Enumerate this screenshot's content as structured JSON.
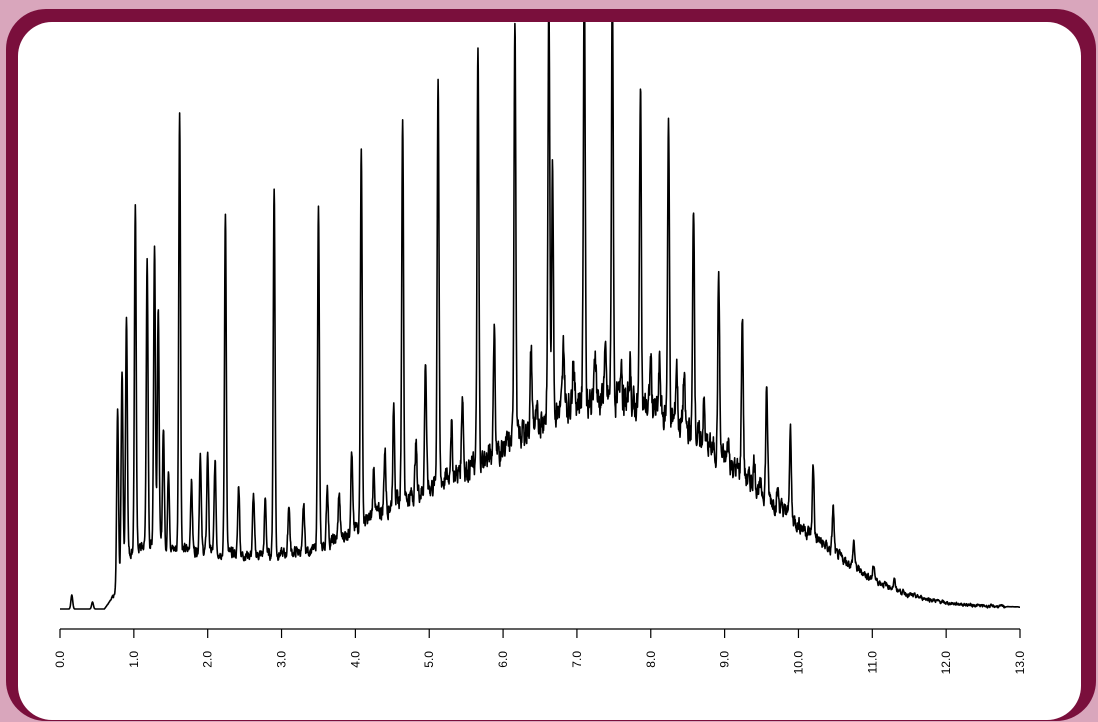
{
  "chart_data": {
    "type": "line",
    "title": "",
    "xlabel": "",
    "ylabel": "",
    "xlim": [
      0.0,
      13.0
    ],
    "x_tick_labels": [
      "0.0",
      "1.0",
      "2.0",
      "3.0",
      "4.0",
      "5.0",
      "6.0",
      "7.0",
      "8.0",
      "9.0",
      "10.0",
      "11.0",
      "12.0",
      "13.0"
    ],
    "x_ticks": [
      0,
      1,
      2,
      3,
      4,
      5,
      6,
      7,
      8,
      9,
      10,
      11,
      12,
      13
    ],
    "baseline": {
      "x": [
        0.0,
        0.6,
        0.75,
        0.9,
        1.2,
        1.5,
        2.0,
        2.5,
        3.0,
        3.5,
        4.0,
        4.5,
        5.0,
        5.5,
        6.0,
        6.5,
        7.0,
        7.5,
        8.0,
        8.5,
        9.0,
        9.5,
        10.0,
        10.5,
        11.0,
        11.5,
        12.0,
        12.5,
        13.0
      ],
      "y": [
        0,
        0,
        15,
        55,
        65,
        60,
        58,
        54,
        55,
        60,
        80,
        105,
        122,
        140,
        160,
        190,
        210,
        210,
        200,
        180,
        150,
        118,
        85,
        55,
        30,
        14,
        6,
        3,
        2
      ]
    },
    "peaks": [
      {
        "x": 0.16,
        "h": 14
      },
      {
        "x": 0.44,
        "h": 7
      },
      {
        "x": 0.78,
        "h": 175
      },
      {
        "x": 0.84,
        "h": 200
      },
      {
        "x": 0.9,
        "h": 240
      },
      {
        "x": 1.02,
        "h": 340
      },
      {
        "x": 1.18,
        "h": 280
      },
      {
        "x": 1.28,
        "h": 300
      },
      {
        "x": 1.33,
        "h": 240
      },
      {
        "x": 1.4,
        "h": 120
      },
      {
        "x": 1.47,
        "h": 80
      },
      {
        "x": 1.62,
        "h": 440
      },
      {
        "x": 1.78,
        "h": 70
      },
      {
        "x": 1.9,
        "h": 100
      },
      {
        "x": 2.0,
        "h": 100
      },
      {
        "x": 2.1,
        "h": 90
      },
      {
        "x": 2.24,
        "h": 340
      },
      {
        "x": 2.42,
        "h": 70
      },
      {
        "x": 2.62,
        "h": 60
      },
      {
        "x": 2.78,
        "h": 55
      },
      {
        "x": 2.9,
        "h": 370
      },
      {
        "x": 3.1,
        "h": 50
      },
      {
        "x": 3.3,
        "h": 45
      },
      {
        "x": 3.5,
        "h": 340
      },
      {
        "x": 3.62,
        "h": 60
      },
      {
        "x": 3.78,
        "h": 45
      },
      {
        "x": 3.95,
        "h": 80
      },
      {
        "x": 4.08,
        "h": 380
      },
      {
        "x": 4.25,
        "h": 50
      },
      {
        "x": 4.4,
        "h": 60
      },
      {
        "x": 4.52,
        "h": 100
      },
      {
        "x": 4.64,
        "h": 390
      },
      {
        "x": 4.82,
        "h": 50
      },
      {
        "x": 4.95,
        "h": 130
      },
      {
        "x": 5.12,
        "h": 410
      },
      {
        "x": 5.3,
        "h": 55
      },
      {
        "x": 5.45,
        "h": 80
      },
      {
        "x": 5.66,
        "h": 410
      },
      {
        "x": 5.88,
        "h": 130
      },
      {
        "x": 6.16,
        "h": 430
      },
      {
        "x": 6.38,
        "h": 75
      },
      {
        "x": 6.62,
        "h": 420
      },
      {
        "x": 6.67,
        "h": 250
      },
      {
        "x": 6.82,
        "h": 60
      },
      {
        "x": 6.95,
        "h": 50
      },
      {
        "x": 7.1,
        "h": 440
      },
      {
        "x": 7.25,
        "h": 50
      },
      {
        "x": 7.38,
        "h": 50
      },
      {
        "x": 7.48,
        "h": 420
      },
      {
        "x": 7.6,
        "h": 50
      },
      {
        "x": 7.72,
        "h": 40
      },
      {
        "x": 7.86,
        "h": 320
      },
      {
        "x": 8.0,
        "h": 50
      },
      {
        "x": 8.12,
        "h": 50
      },
      {
        "x": 8.24,
        "h": 300
      },
      {
        "x": 8.35,
        "h": 60
      },
      {
        "x": 8.45,
        "h": 50
      },
      {
        "x": 8.58,
        "h": 230
      },
      {
        "x": 8.72,
        "h": 40
      },
      {
        "x": 8.92,
        "h": 180
      },
      {
        "x": 9.05,
        "h": 20
      },
      {
        "x": 9.24,
        "h": 160
      },
      {
        "x": 9.4,
        "h": 25
      },
      {
        "x": 9.57,
        "h": 110
      },
      {
        "x": 9.72,
        "h": 15
      },
      {
        "x": 9.89,
        "h": 88
      },
      {
        "x": 10.2,
        "h": 70
      },
      {
        "x": 10.47,
        "h": 45
      },
      {
        "x": 10.75,
        "h": 25
      },
      {
        "x": 11.02,
        "h": 15
      },
      {
        "x": 11.3,
        "h": 8
      }
    ]
  }
}
